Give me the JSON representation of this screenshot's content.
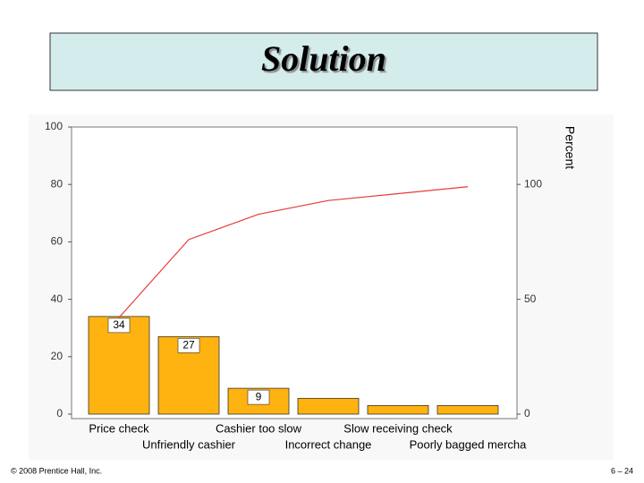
{
  "title": "Solution",
  "footer": {
    "left": "© 2008 Prentice Hall, Inc.",
    "right": "6 – 24"
  },
  "chart_data": {
    "type": "pareto",
    "categories": [
      "Price check",
      "Unfriendly cashier",
      "Cashier too slow",
      "Incorrect change",
      "Slow receiving check",
      "Poorly bagged mercha"
    ],
    "series": [
      {
        "type": "bar",
        "color": "#ffb310",
        "values": [
          34,
          27,
          9,
          5.5,
          3,
          3
        ],
        "value_labels": [
          "34",
          "27",
          "9",
          null,
          null,
          null
        ]
      },
      {
        "type": "line",
        "color": "#e83a3a",
        "axis": "y2",
        "values": [
          42,
          76,
          87,
          93,
          96,
          99
        ]
      }
    ],
    "ylim": [
      0,
      100
    ],
    "yticks": [
      0,
      20,
      40,
      60,
      80,
      100
    ],
    "y2lim": [
      0,
      125
    ],
    "y2ticks": [
      0,
      50,
      100
    ],
    "y2label": "Percent"
  }
}
